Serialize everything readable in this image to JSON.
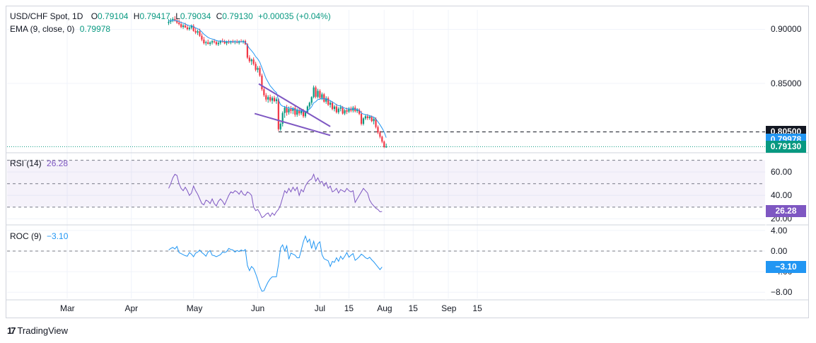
{
  "header": {
    "symbol": "USD/CHF Spot, 1D",
    "o_label": "O",
    "o": "0.79104",
    "h_label": "H",
    "h": "0.79417",
    "l_label": "L",
    "l": "0.79034",
    "c_label": "C",
    "c": "0.79130",
    "change": "+0.00035 (+0.04%)"
  },
  "ema_legend": {
    "name": "EMA (9, close, 0)",
    "value": "0.79978"
  },
  "rsi_legend": {
    "name": "RSI (14)",
    "value": "26.28"
  },
  "roc_legend": {
    "name": "ROC (9)",
    "value": "−3.10"
  },
  "brand": {
    "logo": "17",
    "name": "TradingView"
  },
  "colors": {
    "up": "#089981",
    "down": "#f23645",
    "ema": "#2196f3",
    "rsi": "#7e57c2",
    "roc": "#2196f3",
    "channel": "#7e57c2",
    "grid": "#f0f3fa"
  },
  "chart_data": [
    {
      "type": "candlestick",
      "title": "USD/CHF Spot, 1D",
      "price_ticks": [
        "0.90000",
        "0.85000"
      ],
      "price_tick_values": [
        0.9,
        0.85
      ],
      "ylim": [
        0.787,
        0.918
      ],
      "x_labels": [
        "Mar",
        "Apr",
        "May",
        "Jun",
        "Jul",
        "15",
        "Aug",
        "15",
        "Sep",
        "15"
      ],
      "x_label_days": [
        29,
        60,
        90,
        121,
        151,
        165,
        182,
        196,
        213,
        227
      ],
      "axis_badges": [
        {
          "label": "0.80500",
          "value": 0.805,
          "color": "#131722"
        },
        {
          "label": "0.79978",
          "value": 0.79978,
          "color": "#2196f3"
        },
        {
          "label": "0.79130",
          "value": 0.7913,
          "color": "#089981"
        }
      ],
      "support_level": 0.805,
      "current_price": 0.7913,
      "channel_upper": [
        [
          121.5,
          0.8495
        ],
        [
          156.0,
          0.81
        ]
      ],
      "channel_lower": [
        [
          119.5,
          0.822
        ],
        [
          156.0,
          0.8018
        ]
      ],
      "ohlc": [
        [
          0.9058,
          0.9094,
          0.904,
          0.907
        ],
        [
          0.907,
          0.9102,
          0.905,
          0.9082
        ],
        [
          0.9082,
          0.9112,
          0.9066,
          0.9095
        ],
        [
          0.9095,
          0.9122,
          0.9072,
          0.908
        ],
        [
          0.908,
          0.9104,
          0.905,
          0.9062
        ],
        [
          0.9062,
          0.909,
          0.9036,
          0.9048
        ],
        [
          0.9048,
          0.9072,
          0.901,
          0.9022
        ],
        [
          0.9022,
          0.905,
          0.9005,
          0.9035
        ],
        [
          0.9035,
          0.906,
          0.9012,
          0.9018
        ],
        [
          0.9018,
          0.904,
          0.899,
          0.9002
        ],
        [
          0.9002,
          0.903,
          0.8988,
          0.9015
        ],
        [
          0.9015,
          0.9045,
          0.9,
          0.9032
        ],
        [
          0.9032,
          0.9048,
          0.8978,
          0.8985
        ],
        [
          0.8985,
          0.901,
          0.8955,
          0.897
        ],
        [
          0.897,
          0.8998,
          0.8948,
          0.8982
        ],
        [
          0.8982,
          0.9006,
          0.893,
          0.894
        ],
        [
          0.894,
          0.8962,
          0.889,
          0.8905
        ],
        [
          0.8905,
          0.893,
          0.886,
          0.8872
        ],
        [
          0.8872,
          0.8895,
          0.885,
          0.888
        ],
        [
          0.888,
          0.8905,
          0.886,
          0.8865
        ],
        [
          0.8865,
          0.889,
          0.8848,
          0.8878
        ],
        [
          0.8878,
          0.8902,
          0.886,
          0.889
        ],
        [
          0.889,
          0.891,
          0.887,
          0.8882
        ],
        [
          0.8882,
          0.8898,
          0.885,
          0.8862
        ],
        [
          0.8862,
          0.8888,
          0.8846,
          0.8875
        ],
        [
          0.8875,
          0.89,
          0.8858,
          0.8892
        ],
        [
          0.8892,
          0.8915,
          0.8876,
          0.8885
        ],
        [
          0.8885,
          0.8904,
          0.8862,
          0.887
        ],
        [
          0.887,
          0.8895,
          0.8852,
          0.8886
        ],
        [
          0.8886,
          0.8904,
          0.8866,
          0.8878
        ],
        [
          0.8878,
          0.8896,
          0.8862,
          0.889
        ],
        [
          0.889,
          0.8905,
          0.8872,
          0.888
        ],
        [
          0.888,
          0.89,
          0.8862,
          0.8888
        ],
        [
          0.8888,
          0.8906,
          0.887,
          0.8876
        ],
        [
          0.8876,
          0.8898,
          0.886,
          0.889
        ],
        [
          0.889,
          0.8908,
          0.8878,
          0.8882
        ],
        [
          0.8882,
          0.8902,
          0.8868,
          0.8892
        ],
        [
          0.8892,
          0.8905,
          0.8855,
          0.8862
        ],
        [
          0.8862,
          0.8872,
          0.8725,
          0.8738
        ],
        [
          0.8738,
          0.876,
          0.869,
          0.8705
        ],
        [
          0.8705,
          0.873,
          0.867,
          0.872
        ],
        [
          0.872,
          0.874,
          0.8665,
          0.868
        ],
        [
          0.868,
          0.87,
          0.861,
          0.8625
        ],
        [
          0.8625,
          0.866,
          0.86,
          0.8642
        ],
        [
          0.8642,
          0.8662,
          0.856,
          0.8572
        ],
        [
          0.8572,
          0.859,
          0.843,
          0.8445
        ],
        [
          0.8445,
          0.846,
          0.8375,
          0.839
        ],
        [
          0.839,
          0.841,
          0.833,
          0.835
        ],
        [
          0.835,
          0.839,
          0.832,
          0.8372
        ],
        [
          0.8372,
          0.8395,
          0.8325,
          0.834
        ],
        [
          0.834,
          0.838,
          0.831,
          0.8365
        ],
        [
          0.8365,
          0.8385,
          0.8325,
          0.8335
        ],
        [
          0.8335,
          0.837,
          0.831,
          0.8352
        ],
        [
          0.8352,
          0.836,
          0.8058,
          0.8075
        ],
        [
          0.8075,
          0.814,
          0.806,
          0.8125
        ],
        [
          0.8125,
          0.824,
          0.81,
          0.8225
        ],
        [
          0.8225,
          0.829,
          0.818,
          0.8275
        ],
        [
          0.8275,
          0.83,
          0.82,
          0.823
        ],
        [
          0.823,
          0.8285,
          0.821,
          0.8262
        ],
        [
          0.8262,
          0.829,
          0.822,
          0.8245
        ],
        [
          0.8245,
          0.828,
          0.8215,
          0.827
        ],
        [
          0.827,
          0.8295,
          0.819,
          0.821
        ],
        [
          0.821,
          0.8268,
          0.819,
          0.825
        ],
        [
          0.825,
          0.8275,
          0.82,
          0.8222
        ],
        [
          0.8222,
          0.8262,
          0.8205,
          0.8248
        ],
        [
          0.8248,
          0.8262,
          0.818,
          0.8195
        ],
        [
          0.8195,
          0.8245,
          0.818,
          0.8232
        ],
        [
          0.8232,
          0.8295,
          0.822,
          0.8285
        ],
        [
          0.8285,
          0.833,
          0.8265,
          0.832
        ],
        [
          0.832,
          0.838,
          0.83,
          0.8372
        ],
        [
          0.8372,
          0.848,
          0.836,
          0.8462
        ],
        [
          0.8462,
          0.8478,
          0.836,
          0.8375
        ],
        [
          0.8375,
          0.845,
          0.836,
          0.843
        ],
        [
          0.843,
          0.8445,
          0.835,
          0.8365
        ],
        [
          0.8365,
          0.8415,
          0.8345,
          0.8398
        ],
        [
          0.8398,
          0.841,
          0.832,
          0.833
        ],
        [
          0.833,
          0.838,
          0.831,
          0.8362
        ],
        [
          0.8362,
          0.8378,
          0.829,
          0.8302
        ],
        [
          0.8302,
          0.834,
          0.8275,
          0.832
        ],
        [
          0.832,
          0.8335,
          0.825,
          0.8262
        ],
        [
          0.8262,
          0.83,
          0.824,
          0.8285
        ],
        [
          0.8285,
          0.831,
          0.822,
          0.8232
        ],
        [
          0.8232,
          0.828,
          0.8215,
          0.8265
        ],
        [
          0.8265,
          0.83,
          0.824,
          0.8278
        ],
        [
          0.8278,
          0.829,
          0.821,
          0.822
        ],
        [
          0.822,
          0.8262,
          0.8205,
          0.825
        ],
        [
          0.825,
          0.8275,
          0.8215,
          0.8238
        ],
        [
          0.8238,
          0.828,
          0.8225,
          0.8265
        ],
        [
          0.8265,
          0.8285,
          0.8232,
          0.8248
        ],
        [
          0.8248,
          0.829,
          0.823,
          0.8275
        ],
        [
          0.8275,
          0.8295,
          0.823,
          0.8242
        ],
        [
          0.8242,
          0.827,
          0.8225,
          0.8255
        ],
        [
          0.8255,
          0.8268,
          0.8205,
          0.8218
        ],
        [
          0.8218,
          0.8245,
          0.811,
          0.8125
        ],
        [
          0.8125,
          0.8185,
          0.811,
          0.8175
        ],
        [
          0.8175,
          0.821,
          0.816,
          0.8195
        ],
        [
          0.8195,
          0.8215,
          0.816,
          0.8178
        ],
        [
          0.8178,
          0.8205,
          0.8162,
          0.8192
        ],
        [
          0.8192,
          0.8202,
          0.814,
          0.815
        ],
        [
          0.815,
          0.819,
          0.812,
          0.817
        ],
        [
          0.817,
          0.8185,
          0.8082,
          0.8095
        ],
        [
          0.8095,
          0.811,
          0.803,
          0.8045
        ],
        [
          0.8045,
          0.806,
          0.799,
          0.8005
        ],
        [
          0.8005,
          0.8015,
          0.7945,
          0.796
        ],
        [
          0.796,
          0.797,
          0.79,
          0.791
        ],
        [
          0.791,
          0.7942,
          0.7903,
          0.7913
        ]
      ],
      "ema": [
        0.908,
        0.9081,
        0.9083,
        0.9083,
        0.9079,
        0.9073,
        0.9063,
        0.9058,
        0.905,
        0.904,
        0.9035,
        0.9034,
        0.9024,
        0.9013,
        0.9007,
        0.8994,
        0.8976,
        0.8955,
        0.894,
        0.8925,
        0.8916,
        0.8911,
        0.8905,
        0.8896,
        0.8892,
        0.8892,
        0.8891,
        0.8887,
        0.8887,
        0.8885,
        0.8886,
        0.8885,
        0.8886,
        0.8884,
        0.8885,
        0.8885,
        0.8886,
        0.8881,
        0.8852,
        0.8823,
        0.8802,
        0.8778,
        0.8747,
        0.8726,
        0.8695,
        0.8645,
        0.8594,
        0.8545,
        0.8511,
        0.8477,
        0.8455,
        0.8431,
        0.8415,
        0.8347,
        0.8303,
        0.8288,
        0.8285,
        0.8274,
        0.8272,
        0.8266,
        0.8267,
        0.8255,
        0.8254,
        0.8248,
        0.8248,
        0.8237,
        0.8236,
        0.8246,
        0.8261,
        0.8283,
        0.8319,
        0.833,
        0.835,
        0.8353,
        0.8362,
        0.8355,
        0.8357,
        0.8346,
        0.8341,
        0.8325,
        0.8317,
        0.83,
        0.8293,
        0.829,
        0.8276,
        0.8271,
        0.8264,
        0.8264,
        0.8261,
        0.8264,
        0.8259,
        0.8258,
        0.825,
        0.8225,
        0.8215,
        0.8211,
        0.8205,
        0.8202,
        0.8192,
        0.8188,
        0.8169,
        0.8144,
        0.8116,
        0.8085,
        0.805,
        0.7997
      ]
    },
    {
      "type": "line",
      "name": "RSI (14)",
      "y_ticks": [
        "60.00",
        "40.00",
        "20.00"
      ],
      "y_tick_values": [
        60,
        40,
        20
      ],
      "ylim": [
        16,
        74
      ],
      "levels": [
        70,
        50,
        30
      ],
      "current_label": "26.28",
      "current": 26.28,
      "values": [
        46,
        50,
        55,
        58,
        57,
        50,
        46,
        44,
        47,
        44,
        40,
        42,
        48,
        44,
        41,
        37,
        33,
        32,
        36,
        35,
        33,
        37,
        33,
        31,
        35,
        37,
        35,
        32,
        36,
        40,
        43,
        42,
        44,
        43,
        41,
        44,
        41,
        40,
        43,
        42,
        40,
        30,
        27,
        28,
        25,
        21,
        22,
        24,
        25,
        22,
        25,
        23,
        26,
        28,
        32,
        38,
        44,
        42,
        46,
        43,
        47,
        44,
        47,
        40,
        45,
        43,
        48,
        51,
        53,
        54,
        58,
        52,
        55,
        51,
        52,
        48,
        51,
        46,
        48,
        43,
        44,
        46,
        42,
        45,
        44,
        43,
        46,
        44,
        43,
        44,
        34,
        37,
        40,
        43,
        46,
        44,
        42,
        36,
        33,
        31,
        29,
        28,
        26,
        26.3
      ]
    },
    {
      "type": "line",
      "name": "ROC (9)",
      "y_ticks": [
        "4.00",
        "0.00",
        "−4.00",
        "−8.00"
      ],
      "y_tick_values": [
        4,
        0,
        -4,
        -8
      ],
      "ylim": [
        -9.2,
        4.8
      ],
      "levels": [
        0
      ],
      "current_label": "−3.10",
      "current": -3.1,
      "values": [
        0.2,
        0.5,
        0.7,
        0.4,
        0.9,
        -0.3,
        -0.5,
        -0.7,
        -0.9,
        -1.0,
        -0.3,
        -0.6,
        -1.1,
        -0.4,
        -0.2,
        0.2,
        -0.3,
        -0.6,
        -1.0,
        -0.2,
        0.1,
        -0.8,
        -0.9,
        -1.1,
        -0.9,
        -0.7,
        -0.2,
        -0.3,
        -0.1,
        0.5,
        0.3,
        0.2,
        -0.2,
        0.1,
        -0.1,
        0.2,
        0.0,
        0.3,
        -2.8,
        -3.8,
        -3.0,
        -3.4,
        -4.4,
        -5.6,
        -6.9,
        -7.8,
        -7.7,
        -6.8,
        -6.0,
        -5.4,
        -5.0,
        -5.0,
        -5.0,
        -2.6,
        0.6,
        1.2,
        0.0,
        1.0,
        -1.6,
        -0.4,
        -0.6,
        -0.8,
        -1.3,
        -1.3,
        0.2,
        1.8,
        2.9,
        1.7,
        2.3,
        0.5,
        1.9,
        0.3,
        1.4,
        1.8,
        -0.7,
        -1.5,
        -1.7,
        -1.9,
        -3.0,
        -2.0,
        -2.2,
        -1.3,
        -2.0,
        -1.0,
        -1.6,
        -1.0,
        -0.3,
        -1.2,
        -0.8,
        -0.5,
        -1.8,
        -1.5,
        -1.1,
        -0.6,
        -0.9,
        -1.3,
        -1.5,
        -1.2,
        -1.7,
        -2.1,
        -2.6,
        -3.1,
        -3.6,
        -3.1
      ]
    }
  ]
}
